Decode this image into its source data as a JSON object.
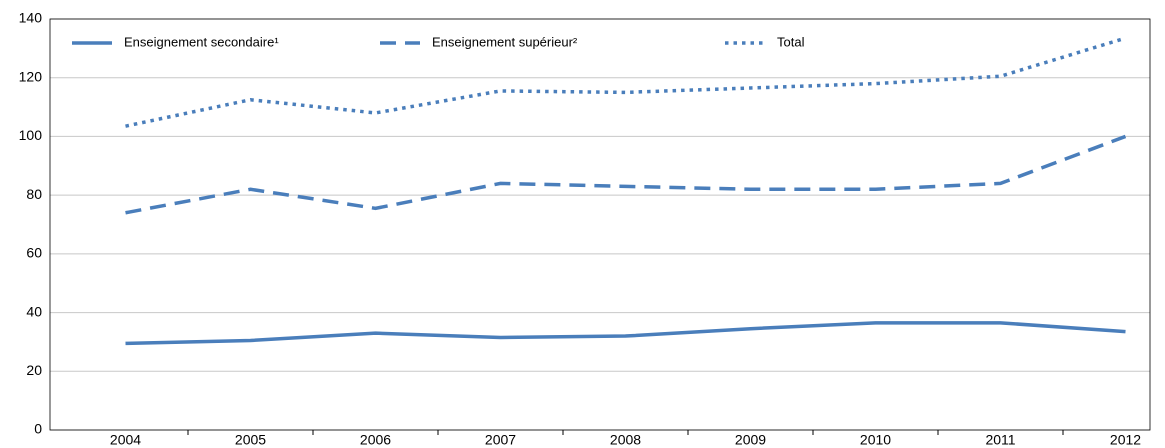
{
  "chart_data": {
    "type": "line",
    "categories": [
      "2004",
      "2005",
      "2006",
      "2007",
      "2008",
      "2009",
      "2010",
      "2011",
      "2012"
    ],
    "series": [
      {
        "name": "Enseignement secondaire¹",
        "color": "#4a7ebb",
        "linestyle": "solid",
        "values": [
          29.5,
          30.5,
          33,
          31.5,
          32,
          34.5,
          36.5,
          36.5,
          33.5
        ]
      },
      {
        "name": "Enseignement supérieur²",
        "color": "#4a7ebb",
        "linestyle": "dashed",
        "values": [
          74,
          82,
          75.5,
          84,
          83,
          82,
          82,
          84,
          100
        ]
      },
      {
        "name": "Total",
        "color": "#4a7ebb",
        "linestyle": "dotted",
        "values": [
          103.5,
          112.5,
          108,
          115.5,
          115,
          116.5,
          118,
          120.5,
          133.5
        ]
      }
    ],
    "ylim": [
      0,
      140
    ],
    "yticks": [
      0,
      20,
      40,
      60,
      80,
      100,
      120,
      140
    ],
    "grid": true,
    "legend": "top"
  }
}
